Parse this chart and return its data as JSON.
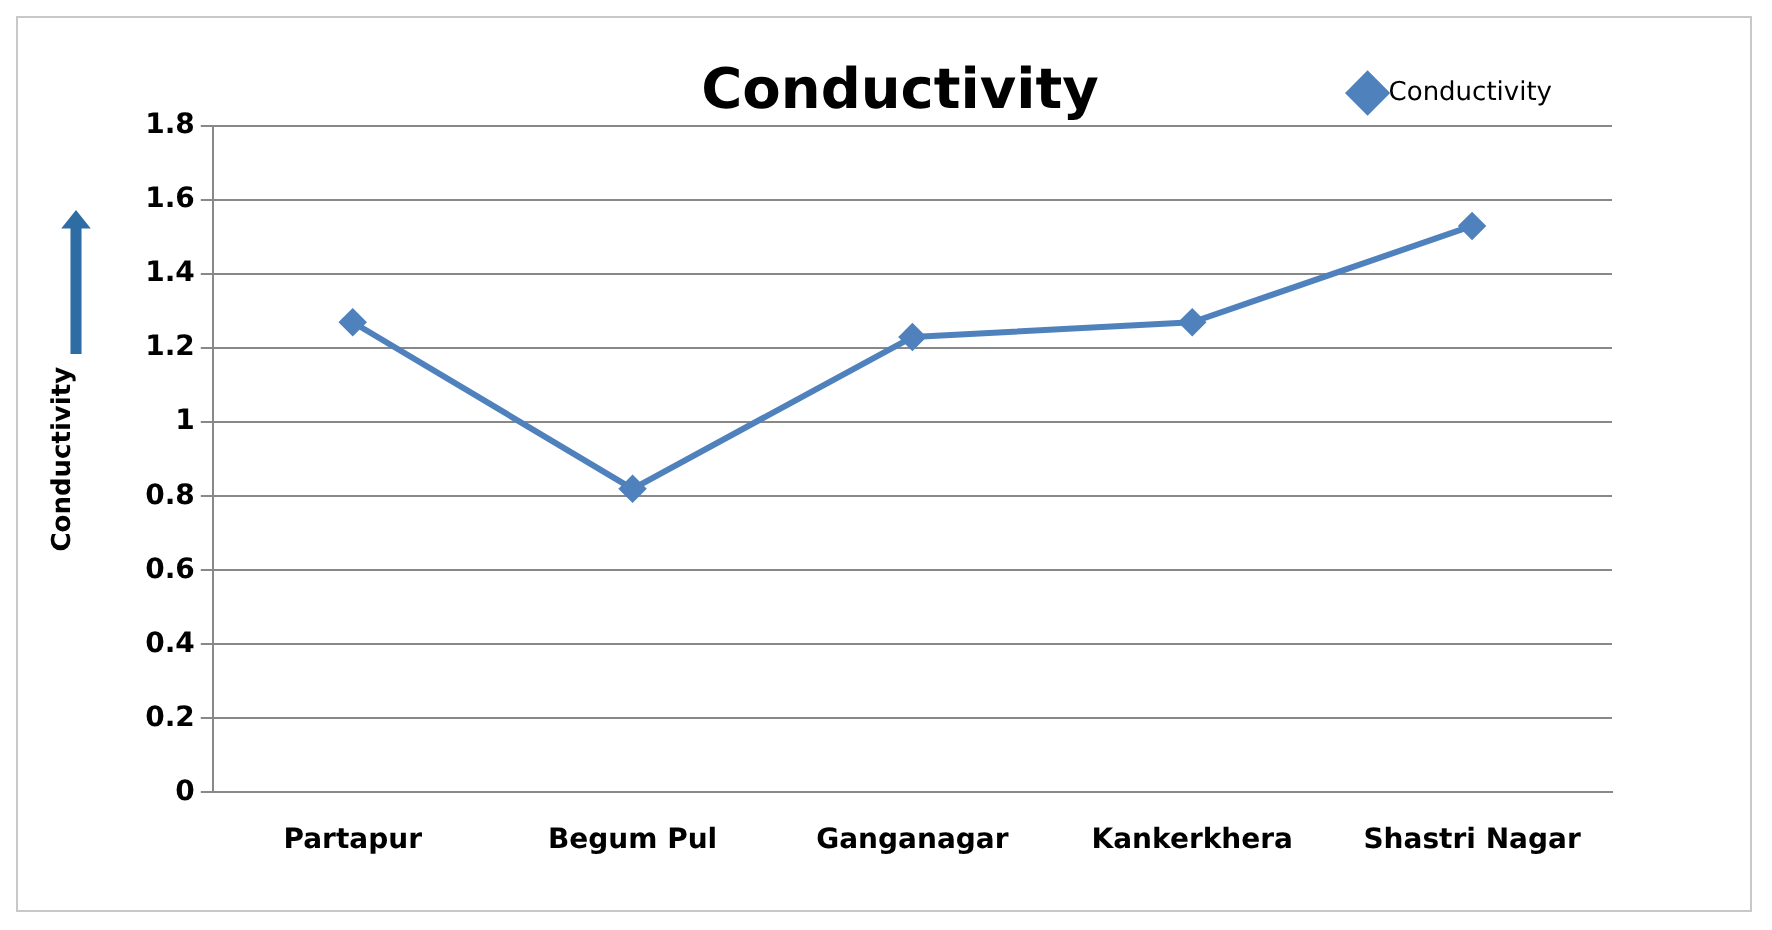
{
  "chart_data": {
    "type": "line",
    "title": "Conductivity",
    "ylabel": "Conductivity",
    "categories": [
      "Partapur",
      "Begum Pul",
      "Ganganagar",
      "Kankerkhera",
      "Shastri Nagar"
    ],
    "series": [
      {
        "name": "Conductivity",
        "color": "#4f81bd",
        "values": [
          1.27,
          0.82,
          1.23,
          1.27,
          1.53
        ]
      }
    ],
    "ylim": [
      0,
      1.8
    ],
    "yticks": [
      0,
      0.2,
      0.4,
      0.6,
      0.8,
      1,
      1.2,
      1.4,
      1.6,
      1.8
    ],
    "grid": "y",
    "legend": "top right",
    "marker": "diamond",
    "line_style": "solid"
  }
}
